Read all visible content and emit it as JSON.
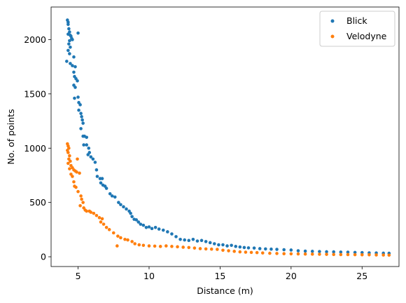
{
  "chart_data": {
    "type": "scatter",
    "xlabel": "Distance (m)",
    "ylabel": "No. of points",
    "xlim": [
      3.1,
      27.6
    ],
    "ylim": [
      -90,
      2300
    ],
    "xticks": [
      5,
      10,
      15,
      20,
      25
    ],
    "yticks": [
      0,
      500,
      1000,
      1500,
      2000
    ],
    "legend_position": "top-right",
    "grid": false,
    "series": [
      {
        "name": "Blick",
        "color": "#1f77b4",
        "points": [
          [
            4.25,
            2180
          ],
          [
            4.3,
            2160
          ],
          [
            4.3,
            2140
          ],
          [
            4.35,
            2100
          ],
          [
            4.4,
            2070
          ],
          [
            4.3,
            2050
          ],
          [
            4.45,
            2040
          ],
          [
            4.5,
            2030
          ],
          [
            4.55,
            2010
          ],
          [
            4.4,
            1990
          ],
          [
            4.6,
            2000
          ],
          [
            4.35,
            1960
          ],
          [
            4.45,
            1930
          ],
          [
            4.3,
            1900
          ],
          [
            4.4,
            1870
          ],
          [
            4.2,
            1800
          ],
          [
            4.45,
            1780
          ],
          [
            5.0,
            2060
          ],
          [
            4.7,
            1840
          ],
          [
            4.6,
            1760
          ],
          [
            4.8,
            1750
          ],
          [
            4.7,
            1700
          ],
          [
            4.75,
            1660
          ],
          [
            4.85,
            1640
          ],
          [
            4.95,
            1620
          ],
          [
            4.7,
            1580
          ],
          [
            4.8,
            1560
          ],
          [
            5.0,
            1470
          ],
          [
            4.75,
            1460
          ],
          [
            5.05,
            1420
          ],
          [
            5.15,
            1400
          ],
          [
            5.05,
            1350
          ],
          [
            5.2,
            1320
          ],
          [
            5.25,
            1290
          ],
          [
            5.3,
            1260
          ],
          [
            5.35,
            1230
          ],
          [
            5.2,
            1180
          ],
          [
            5.35,
            1110
          ],
          [
            5.45,
            1110
          ],
          [
            5.6,
            1100
          ],
          [
            5.4,
            1030
          ],
          [
            5.6,
            1030
          ],
          [
            5.75,
            1000
          ],
          [
            5.8,
            960
          ],
          [
            5.7,
            940
          ],
          [
            5.9,
            920
          ],
          [
            6.05,
            900
          ],
          [
            6.2,
            870
          ],
          [
            6.3,
            800
          ],
          [
            6.35,
            740
          ],
          [
            6.55,
            720
          ],
          [
            6.7,
            720
          ],
          [
            6.6,
            680
          ],
          [
            6.75,
            660
          ],
          [
            6.9,
            650
          ],
          [
            7.0,
            630
          ],
          [
            7.25,
            580
          ],
          [
            7.4,
            560
          ],
          [
            7.6,
            550
          ],
          [
            7.85,
            500
          ],
          [
            8.0,
            480
          ],
          [
            8.2,
            460
          ],
          [
            8.4,
            440
          ],
          [
            8.6,
            420
          ],
          [
            8.7,
            400
          ],
          [
            8.8,
            370
          ],
          [
            8.95,
            345
          ],
          [
            9.1,
            340
          ],
          [
            9.25,
            320
          ],
          [
            9.4,
            300
          ],
          [
            9.6,
            290
          ],
          [
            9.8,
            270
          ],
          [
            10.0,
            275
          ],
          [
            10.2,
            260
          ],
          [
            10.45,
            270
          ],
          [
            10.7,
            255
          ],
          [
            11.0,
            245
          ],
          [
            11.3,
            230
          ],
          [
            11.6,
            210
          ],
          [
            11.9,
            185
          ],
          [
            12.2,
            160
          ],
          [
            12.5,
            155
          ],
          [
            12.8,
            150
          ],
          [
            13.1,
            160
          ],
          [
            13.4,
            145
          ],
          [
            13.7,
            150
          ],
          [
            14.0,
            140
          ],
          [
            14.3,
            130
          ],
          [
            14.6,
            120
          ],
          [
            14.9,
            110
          ],
          [
            15.2,
            110
          ],
          [
            15.5,
            100
          ],
          [
            15.8,
            105
          ],
          [
            16.1,
            95
          ],
          [
            16.4,
            90
          ],
          [
            16.7,
            85
          ],
          [
            17.0,
            82
          ],
          [
            17.4,
            80
          ],
          [
            17.8,
            75
          ],
          [
            18.2,
            72
          ],
          [
            18.6,
            70
          ],
          [
            19.0,
            68
          ],
          [
            19.5,
            65
          ],
          [
            20.0,
            62
          ],
          [
            20.5,
            55
          ],
          [
            21.0,
            52
          ],
          [
            21.5,
            50
          ],
          [
            22.0,
            48
          ],
          [
            22.5,
            46
          ],
          [
            23.0,
            45
          ],
          [
            23.5,
            43
          ],
          [
            24.0,
            42
          ],
          [
            24.5,
            40
          ],
          [
            25.0,
            38
          ],
          [
            25.5,
            36
          ],
          [
            26.0,
            35
          ],
          [
            26.5,
            33
          ],
          [
            26.9,
            32
          ]
        ]
      },
      {
        "name": "Velodyne",
        "color": "#ff7f0e",
        "points": [
          [
            4.25,
            1040
          ],
          [
            4.3,
            1020
          ],
          [
            4.35,
            1000
          ],
          [
            4.25,
            980
          ],
          [
            4.3,
            960
          ],
          [
            4.4,
            930
          ],
          [
            4.35,
            900
          ],
          [
            4.45,
            880
          ],
          [
            4.3,
            860
          ],
          [
            4.5,
            840
          ],
          [
            4.6,
            820
          ],
          [
            4.4,
            810
          ],
          [
            4.7,
            800
          ],
          [
            4.8,
            790
          ],
          [
            4.9,
            780
          ],
          [
            4.5,
            760
          ],
          [
            4.6,
            740
          ],
          [
            4.95,
            900
          ],
          [
            5.1,
            770
          ],
          [
            4.7,
            690
          ],
          [
            4.75,
            650
          ],
          [
            4.85,
            640
          ],
          [
            5.0,
            600
          ],
          [
            5.2,
            560
          ],
          [
            5.25,
            530
          ],
          [
            5.35,
            500
          ],
          [
            5.15,
            470
          ],
          [
            5.4,
            450
          ],
          [
            5.5,
            430
          ],
          [
            5.6,
            420
          ],
          [
            5.8,
            420
          ],
          [
            5.9,
            410
          ],
          [
            6.1,
            400
          ],
          [
            6.3,
            380
          ],
          [
            6.5,
            360
          ],
          [
            6.7,
            350
          ],
          [
            6.6,
            320
          ],
          [
            6.8,
            300
          ],
          [
            7.0,
            270
          ],
          [
            7.2,
            250
          ],
          [
            7.5,
            220
          ],
          [
            7.8,
            190
          ],
          [
            7.75,
            100
          ],
          [
            8.0,
            175
          ],
          [
            8.3,
            160
          ],
          [
            8.5,
            155
          ],
          [
            8.8,
            140
          ],
          [
            9.0,
            120
          ],
          [
            9.3,
            110
          ],
          [
            9.6,
            105
          ],
          [
            10.0,
            100
          ],
          [
            10.4,
            98
          ],
          [
            10.8,
            95
          ],
          [
            11.2,
            100
          ],
          [
            11.6,
            95
          ],
          [
            12.0,
            92
          ],
          [
            12.4,
            88
          ],
          [
            12.8,
            85
          ],
          [
            13.2,
            80
          ],
          [
            13.6,
            75
          ],
          [
            14.0,
            72
          ],
          [
            14.4,
            70
          ],
          [
            14.8,
            68
          ],
          [
            15.2,
            60
          ],
          [
            15.6,
            55
          ],
          [
            16.0,
            50
          ],
          [
            16.4,
            45
          ],
          [
            16.8,
            42
          ],
          [
            17.2,
            40
          ],
          [
            17.6,
            38
          ],
          [
            18.0,
            35
          ],
          [
            18.5,
            32
          ],
          [
            19.0,
            30
          ],
          [
            19.5,
            28
          ],
          [
            20.0,
            27
          ],
          [
            20.5,
            26
          ],
          [
            21.0,
            25
          ],
          [
            21.5,
            24
          ],
          [
            22.0,
            23
          ],
          [
            22.5,
            22
          ],
          [
            23.0,
            21
          ],
          [
            23.5,
            20
          ],
          [
            24.0,
            20
          ],
          [
            24.5,
            19
          ],
          [
            25.0,
            18
          ],
          [
            25.5,
            18
          ],
          [
            26.0,
            17
          ],
          [
            26.5,
            16
          ],
          [
            26.9,
            15
          ]
        ]
      }
    ]
  }
}
